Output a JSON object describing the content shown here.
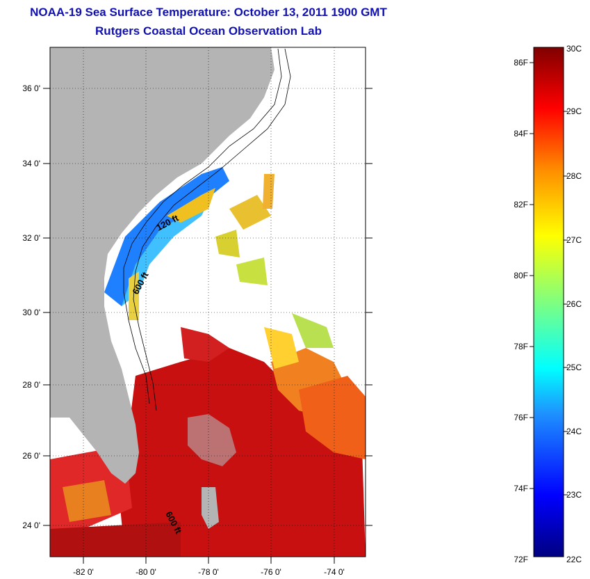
{
  "title_line1": "NOAA-19 Sea Surface Temperature:  October 13, 2011 1900 GMT",
  "title_line2": "Rutgers Coastal Ocean Observation Lab",
  "lat_labels": [
    "36 0'",
    "34 0'",
    "32 0'",
    "30 0'",
    "28 0'",
    "26 0'",
    "24 0'"
  ],
  "lon_labels": [
    "-82 0'",
    "-80 0'",
    "-78 0'",
    "-76 0'",
    "-74 0'"
  ],
  "contours": {
    "c1": "120 ft",
    "c2": "600 ft",
    "c3": "600 ft"
  },
  "colorbar": {
    "f_labels": [
      "86F",
      "84F",
      "82F",
      "80F",
      "78F",
      "76F",
      "74F",
      "72F"
    ],
    "c_labels": [
      "30C",
      "29C",
      "28C",
      "27C",
      "26C",
      "25C",
      "24C",
      "23C",
      "22C"
    ]
  },
  "colors": {
    "land": "#b4b4b4",
    "title": "#1010b0"
  }
}
